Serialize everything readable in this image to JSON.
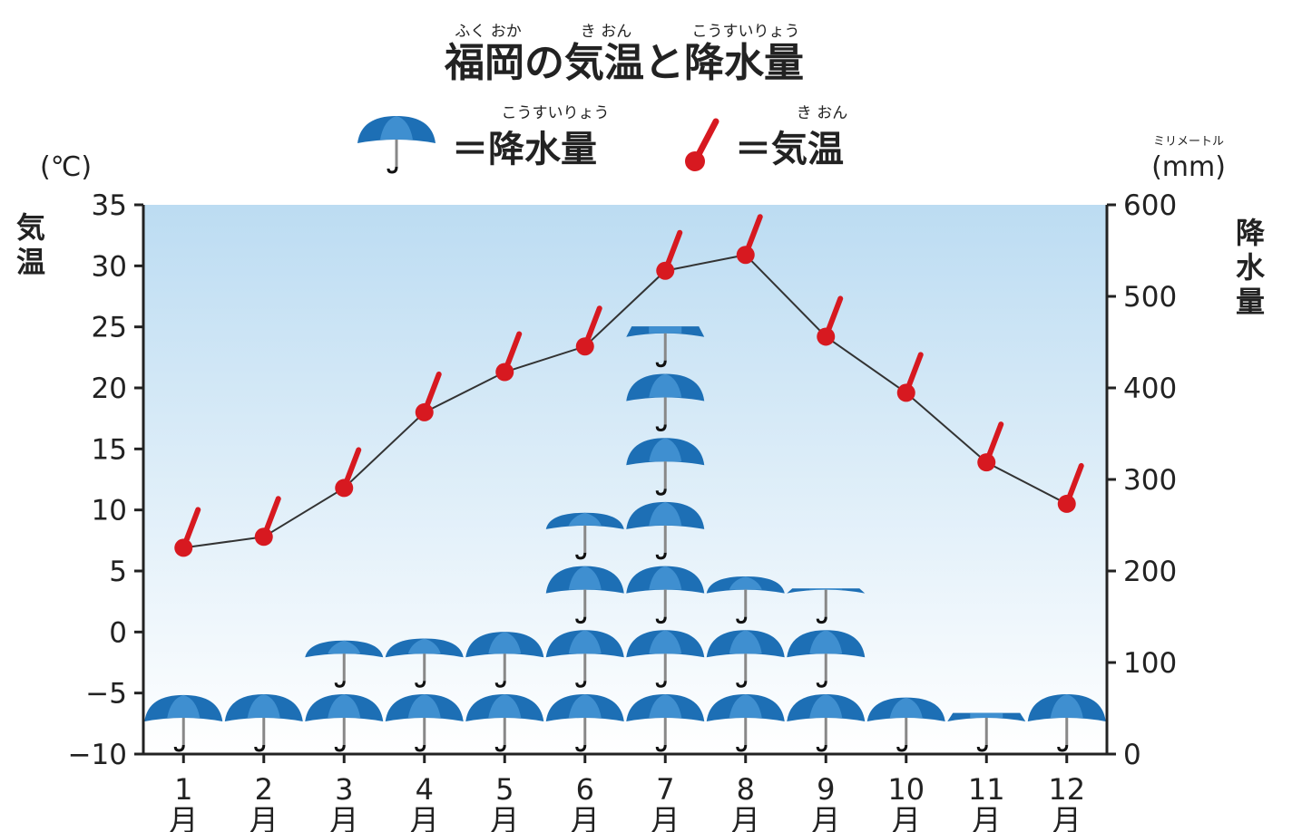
{
  "title": {
    "text": "福岡の気温と降水量",
    "ruby": [
      "ふく おか",
      "き おん",
      "こうすいりょう"
    ]
  },
  "legend": {
    "precip_ruby": "こうすいりょう",
    "precip_label": "＝降水量",
    "temp_ruby": "き おん",
    "temp_label": "＝気温"
  },
  "axes": {
    "left_unit": "(℃)",
    "left_name": [
      "気",
      "温"
    ],
    "right_unit_ruby": "ミリメートル",
    "right_unit": "(mm)",
    "right_name": [
      "降",
      "水",
      "量"
    ],
    "left_ticks": [
      "35",
      "30",
      "25",
      "20",
      "15",
      "10",
      "5",
      "0",
      "−5",
      "−10"
    ],
    "right_ticks": [
      "600",
      "500",
      "400",
      "300",
      "200",
      "100",
      "0"
    ],
    "month_numbers": [
      "1",
      "2",
      "3",
      "4",
      "5",
      "6",
      "7",
      "8",
      "9",
      "10",
      "11",
      "12"
    ],
    "month_char": "月"
  },
  "colors": {
    "umbrella": "#1d6fb5",
    "umbrella_light": "#3f8fd0",
    "thermometer": "#d71920",
    "line": "#333333",
    "plot_bg_top": "#bcdcf2",
    "plot_bg_bottom": "#ffffff"
  },
  "chart_data": {
    "type": "line+pictograph",
    "categories": [
      "1月",
      "2月",
      "3月",
      "4月",
      "5月",
      "6月",
      "7月",
      "8月",
      "9月",
      "10月",
      "11月",
      "12月"
    ],
    "series": [
      {
        "name": "気温",
        "axis": "left",
        "unit": "℃",
        "values": [
          6.9,
          7.8,
          11.8,
          18.0,
          21.3,
          23.4,
          29.6,
          30.9,
          24.2,
          19.6,
          13.9,
          10.5
        ]
      },
      {
        "name": "降水量",
        "axis": "right",
        "unit": "mm",
        "umbrella_unit_mm": 70,
        "values": [
          68,
          72,
          115,
          120,
          136,
          254,
          450,
          185,
          156,
          62,
          25,
          70
        ]
      }
    ],
    "ylim_left": [
      -10,
      35
    ],
    "ylim_right": [
      0,
      600
    ]
  }
}
